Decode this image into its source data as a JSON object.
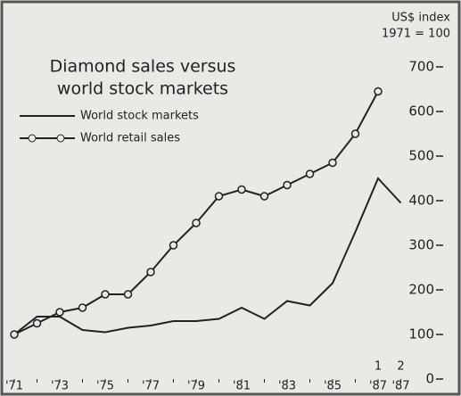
{
  "chart_data": {
    "type": "line",
    "title": [
      "Diamond sales versus",
      "world stock markets"
    ],
    "y_axis_label": [
      "US$ index",
      "1971 = 100"
    ],
    "categories": [
      "'71",
      null,
      "'73",
      null,
      "'75",
      null,
      "'77",
      null,
      "'79",
      null,
      "'81",
      null,
      "'83",
      null,
      "'85",
      null,
      "'87",
      "'87"
    ],
    "category_sublabels": [
      null,
      null,
      null,
      null,
      null,
      null,
      null,
      null,
      null,
      null,
      null,
      null,
      null,
      null,
      null,
      null,
      "1",
      "2"
    ],
    "series": [
      {
        "name": "World stock markets",
        "color": "#222222",
        "marker": "none",
        "values": [
          100,
          140,
          140,
          110,
          105,
          115,
          120,
          130,
          130,
          135,
          160,
          135,
          175,
          165,
          215,
          330,
          450,
          395
        ]
      },
      {
        "name": "World retail sales",
        "color": "#222222",
        "marker": "circle",
        "values": [
          100,
          125,
          150,
          160,
          190,
          190,
          240,
          300,
          350,
          410,
          425,
          410,
          435,
          460,
          485,
          550,
          645,
          null
        ]
      }
    ],
    "ylim": [
      0,
      700
    ],
    "yticks": [
      0,
      100,
      200,
      300,
      400,
      500,
      600,
      700
    ],
    "y_axis_side": "right",
    "grid": false
  }
}
